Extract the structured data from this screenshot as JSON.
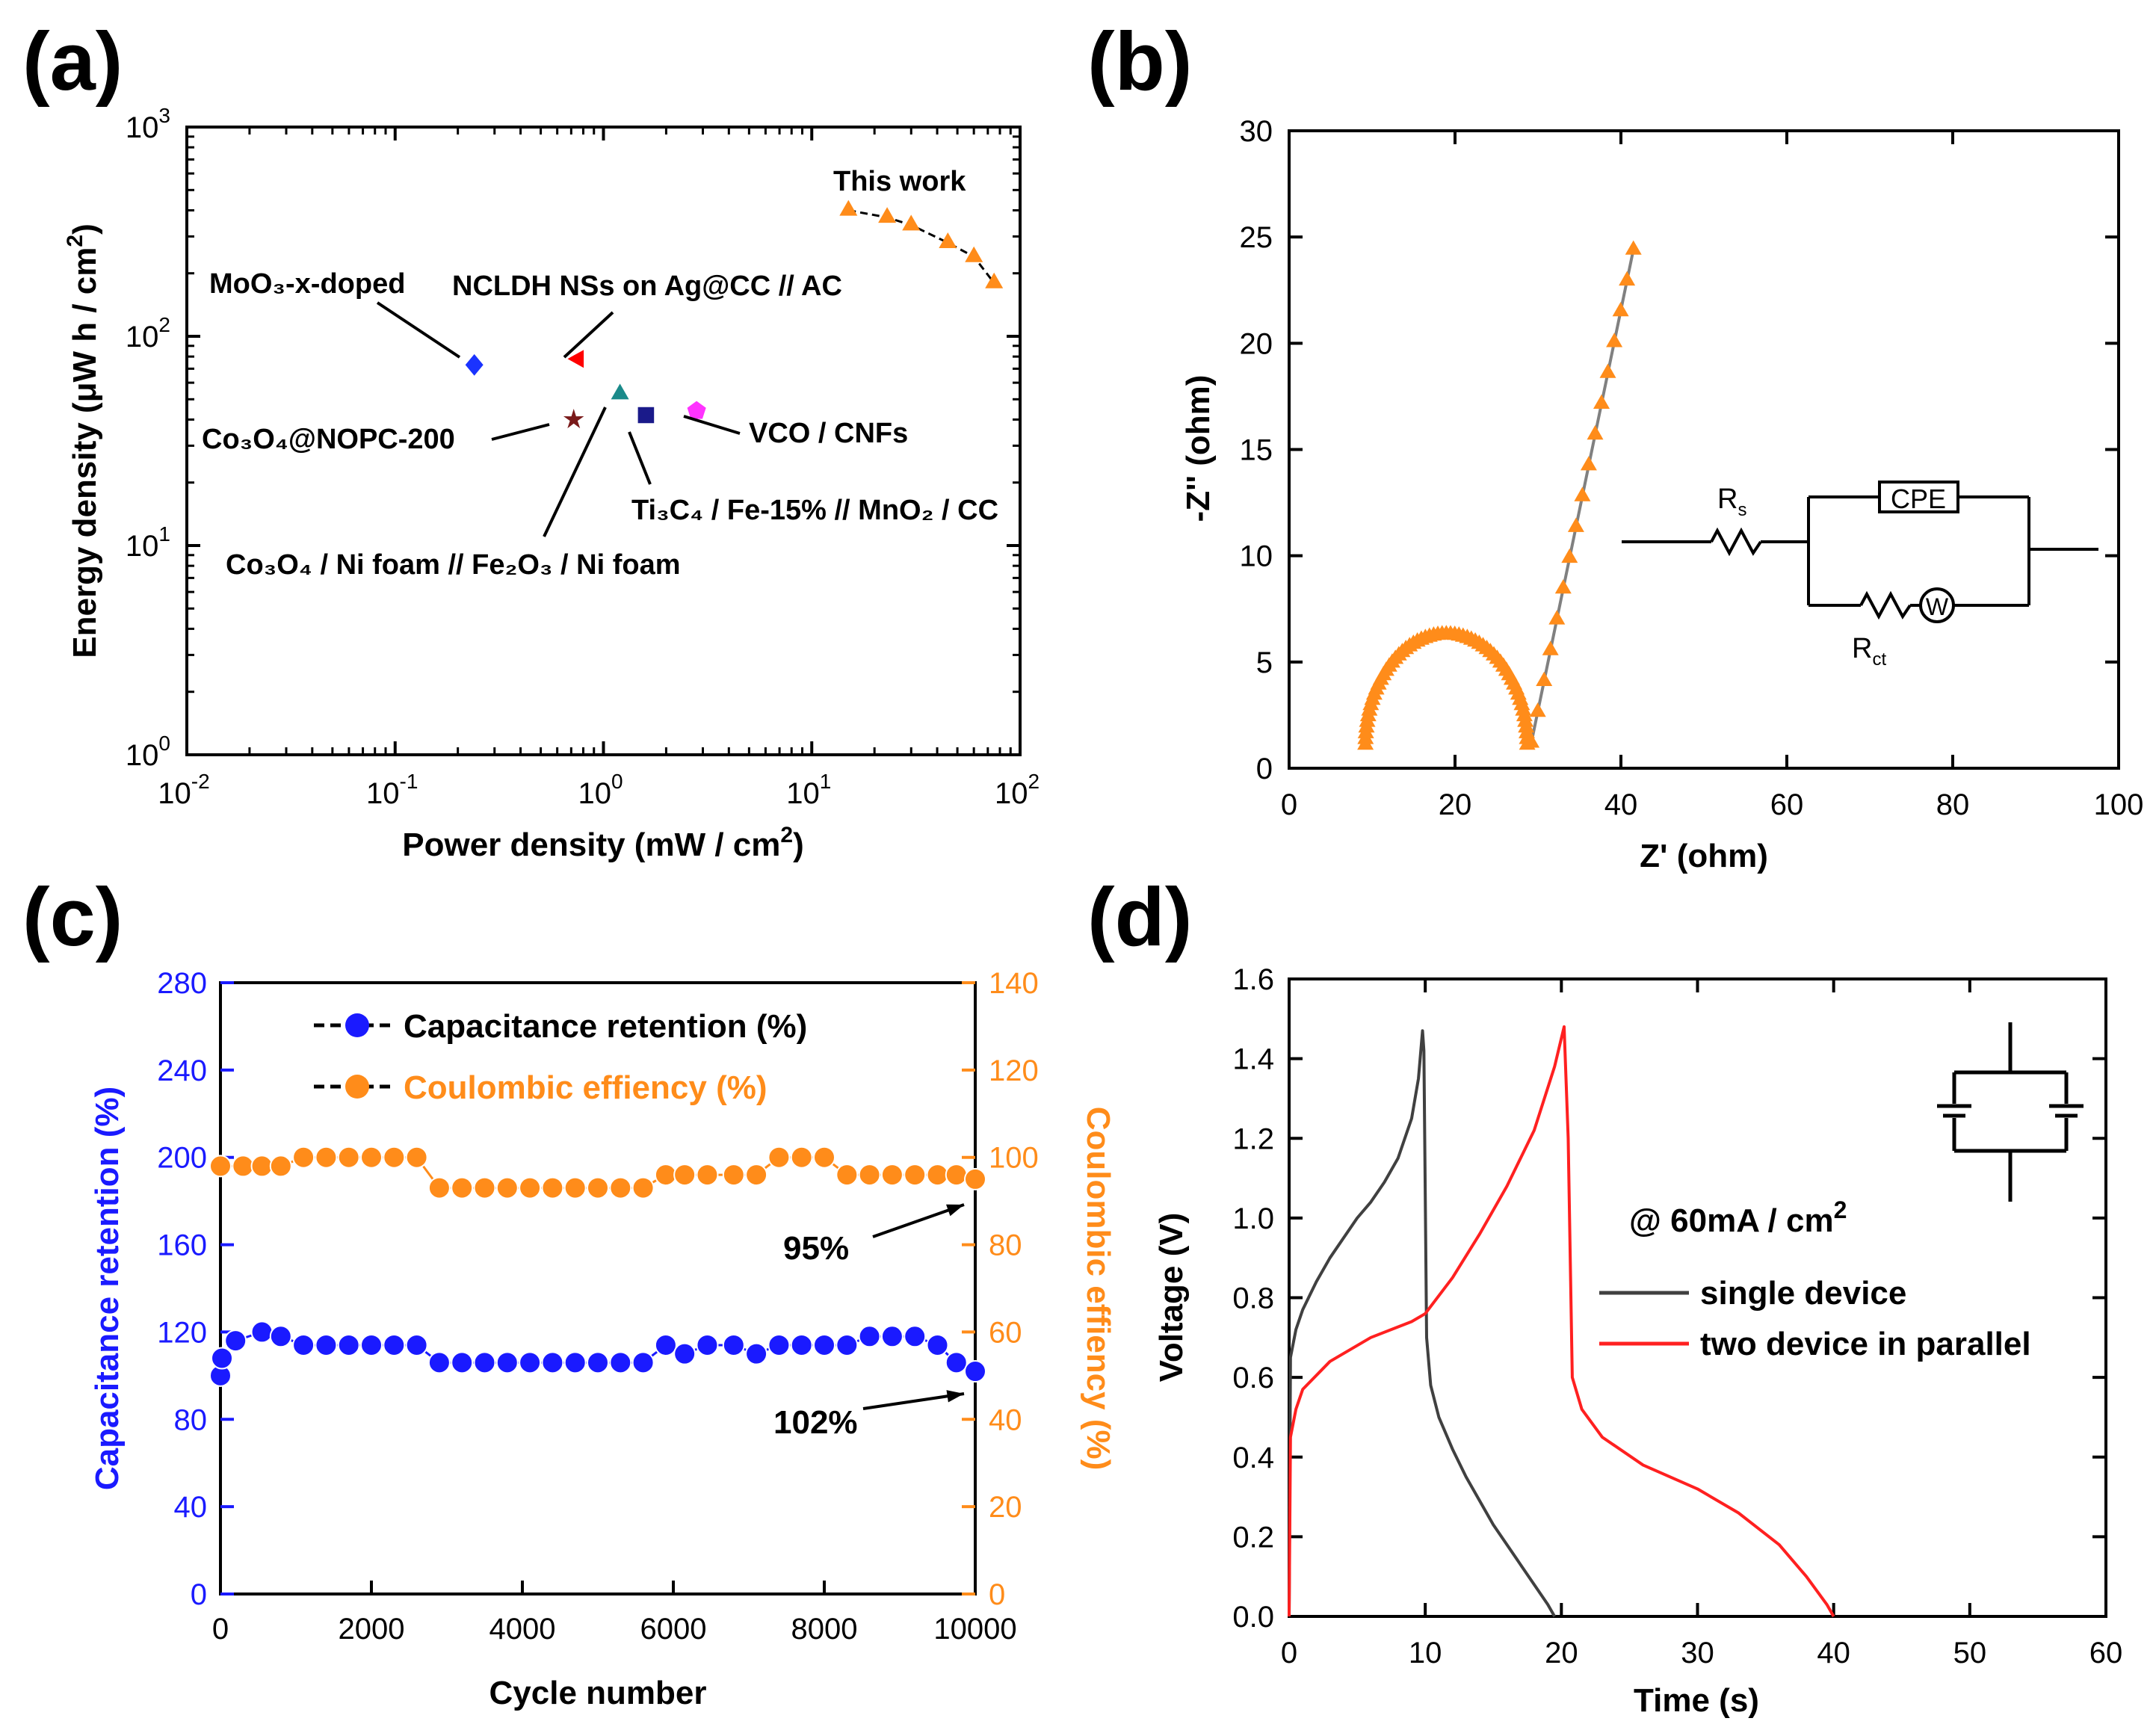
{
  "chart_data": [
    {
      "panel": "(a)",
      "type": "scatter",
      "xlabel": "Power density (mW / cm²)",
      "ylabel": "Energy density (μW h / cm²)",
      "xscale": "log",
      "yscale": "log",
      "xlim": [
        0.01,
        100
      ],
      "ylim": [
        1,
        1000
      ],
      "xticks": [
        {
          "v": 0.01,
          "m": "10",
          "e": "-2"
        },
        {
          "v": 0.1,
          "m": "10",
          "e": "-1"
        },
        {
          "v": 1,
          "m": "10",
          "e": "0"
        },
        {
          "v": 10,
          "m": "10",
          "e": "1"
        },
        {
          "v": 100,
          "m": "10",
          "e": "2"
        }
      ],
      "yticks": [
        {
          "v": 1,
          "m": "10",
          "e": "0"
        },
        {
          "v": 10,
          "m": "10",
          "e": "1"
        },
        {
          "v": 100,
          "m": "10",
          "e": "2"
        },
        {
          "v": 1000,
          "m": "10",
          "e": "3"
        }
      ],
      "series": [
        {
          "name": "This work",
          "label": "This work",
          "marker": "triangle",
          "color": "#ff8c1a",
          "x": [
            15,
            23,
            30,
            45,
            60,
            75
          ],
          "y": [
            400,
            370,
            340,
            280,
            240,
            180
          ]
        },
        {
          "name": "MoO3-x-doped",
          "label": "MoO₃-x-doped",
          "marker": "diamond",
          "color": "#1a33ff",
          "x": [
            0.24
          ],
          "y": [
            73
          ]
        },
        {
          "name": "NCLDH NSs on Ag@CC // AC",
          "label": "NCLDH NSs on Ag@CC // AC",
          "marker": "triangle-left",
          "color": "#ff0000",
          "x": [
            0.75
          ],
          "y": [
            78
          ]
        },
        {
          "name": "Co3O4@NOPC-200",
          "label": "Co₃O₄@NOPC-200",
          "marker": "star",
          "color": "#7a1a1a",
          "x": [
            0.72
          ],
          "y": [
            40
          ]
        },
        {
          "name": "Co3O4 / Ni foam // Fe2O3 / Ni foam",
          "label": "Co₃O₄ / Ni foam // Fe₂O₃ / Ni foam",
          "marker": "triangle",
          "color": "#1a8a8a",
          "x": [
            1.2
          ],
          "y": [
            53
          ]
        },
        {
          "name": "Ti3C4 / Fe-15% // MnO2 / CC",
          "label": "Ti₃C₄ / Fe-15% // MnO₂ / CC",
          "marker": "square",
          "color": "#1a1a8a",
          "x": [
            1.6
          ],
          "y": [
            42
          ]
        },
        {
          "name": "VCO / CNFs",
          "label": "VCO / CNFs",
          "marker": "pentagon",
          "color": "#ff33ff",
          "x": [
            2.8
          ],
          "y": [
            44
          ]
        }
      ]
    },
    {
      "panel": "(b)",
      "type": "scatter",
      "xlabel": "Z' (ohm)",
      "ylabel": "-Z'' (ohm)",
      "xlim": [
        0,
        100
      ],
      "ylim": [
        0,
        30
      ],
      "xticks": [
        0,
        20,
        40,
        60,
        80,
        100
      ],
      "yticks": [
        0,
        5,
        10,
        15,
        20,
        25,
        30
      ],
      "nyquist": {
        "rs": 9.2,
        "rct": 19.5,
        "tail_end": [
          41.5,
          24.4
        ],
        "color": "#ff8c1a",
        "fit_color": "#808080"
      },
      "inset_labels": {
        "rs": "R",
        "rs_sub": "s",
        "cpe": "CPE",
        "rct": "R",
        "rct_sub": "ct",
        "w": "W"
      }
    },
    {
      "panel": "(c)",
      "type": "line",
      "xlabel": "Cycle number",
      "ylabel": "Capacitance retention (%)",
      "y2label": "Coulombic effiency (%)",
      "xlim": [
        0,
        10000
      ],
      "ylim": [
        0,
        280
      ],
      "y2lim": [
        0,
        140
      ],
      "xticks": [
        0,
        2000,
        4000,
        6000,
        8000,
        10000
      ],
      "yticks": [
        0,
        40,
        80,
        120,
        160,
        200,
        240,
        280
      ],
      "y2ticks": [
        0,
        20,
        40,
        60,
        80,
        100,
        120,
        140
      ],
      "series": [
        {
          "name": "Capacitance retention (%)",
          "axis": "left",
          "color": "#1a1aff",
          "x": [
            0,
            20,
            200,
            550,
            800,
            1100,
            1400,
            1700,
            2000,
            2300,
            2600,
            2900,
            3200,
            3500,
            3800,
            4100,
            4400,
            4700,
            5000,
            5300,
            5600,
            5900,
            6150,
            6450,
            6800,
            7100,
            7400,
            7700,
            8000,
            8300,
            8600,
            8900,
            9200,
            9500,
            9750,
            10000
          ],
          "y": [
            100,
            108,
            116,
            120,
            118,
            114,
            114,
            114,
            114,
            114,
            114,
            106,
            106,
            106,
            106,
            106,
            106,
            106,
            106,
            106,
            106,
            114,
            110,
            114,
            114,
            110,
            114,
            114,
            114,
            114,
            118,
            118,
            118,
            114,
            106,
            102
          ]
        },
        {
          "name": "Coulombic effiency (%)",
          "axis": "right",
          "color": "#ff8c1a",
          "x": [
            0,
            300,
            550,
            800,
            1100,
            1400,
            1700,
            2000,
            2300,
            2600,
            2900,
            3200,
            3500,
            3800,
            4100,
            4400,
            4700,
            5000,
            5300,
            5600,
            5900,
            6150,
            6450,
            6800,
            7100,
            7400,
            7700,
            8000,
            8300,
            8600,
            8900,
            9200,
            9500,
            9750,
            10000
          ],
          "y": [
            98,
            98,
            98,
            98,
            100,
            100,
            100,
            100,
            100,
            100,
            93,
            93,
            93,
            93,
            93,
            93,
            93,
            93,
            93,
            93,
            96,
            96,
            96,
            96,
            96,
            100,
            100,
            100,
            96,
            96,
            96,
            96,
            96,
            96,
            95
          ]
        }
      ],
      "annotations": [
        {
          "text": "95%",
          "at": [
            10000,
            95
          ],
          "axis": "right"
        },
        {
          "text": "102%",
          "at": [
            10000,
            102
          ],
          "axis": "left"
        }
      ]
    },
    {
      "panel": "(d)",
      "type": "line",
      "xlabel": "Time (s)",
      "ylabel": "Voltage (V)",
      "xlim": [
        0,
        60
      ],
      "ylim": [
        0,
        1.6
      ],
      "xticks": [
        0,
        10,
        20,
        30,
        40,
        50,
        60
      ],
      "yticks": [
        0.0,
        0.2,
        0.4,
        0.6,
        0.8,
        1.0,
        1.2,
        1.4,
        1.6
      ],
      "condition": "@ 60mA / cm",
      "condition_sup": "2",
      "series": [
        {
          "name": "single device",
          "color": "#404040",
          "x": [
            0,
            0.1,
            0.5,
            1,
            2,
            3,
            4,
            5,
            6,
            7,
            8,
            9,
            9.5,
            9.8,
            9.9,
            10.1,
            10.4,
            11,
            12,
            13,
            14,
            15,
            16,
            17,
            18,
            19,
            19.5
          ],
          "y": [
            0,
            0.65,
            0.72,
            0.77,
            0.84,
            0.9,
            0.95,
            1.0,
            1.04,
            1.09,
            1.15,
            1.25,
            1.35,
            1.47,
            1.42,
            0.7,
            0.58,
            0.5,
            0.42,
            0.35,
            0.29,
            0.23,
            0.18,
            0.13,
            0.08,
            0.03,
            0
          ]
        },
        {
          "name": "two device in parallel",
          "color": "#ff2020",
          "x": [
            0,
            0.1,
            0.5,
            1,
            3,
            6,
            9,
            10,
            12,
            14,
            16,
            18,
            19.5,
            20.2,
            20.5,
            20.8,
            21.5,
            23,
            26,
            30,
            33,
            36,
            38,
            39.5,
            40
          ],
          "y": [
            0,
            0.45,
            0.52,
            0.57,
            0.64,
            0.7,
            0.74,
            0.76,
            0.85,
            0.96,
            1.08,
            1.22,
            1.38,
            1.48,
            1.2,
            0.6,
            0.52,
            0.45,
            0.38,
            0.32,
            0.26,
            0.18,
            0.1,
            0.03,
            0
          ]
        }
      ]
    }
  ]
}
